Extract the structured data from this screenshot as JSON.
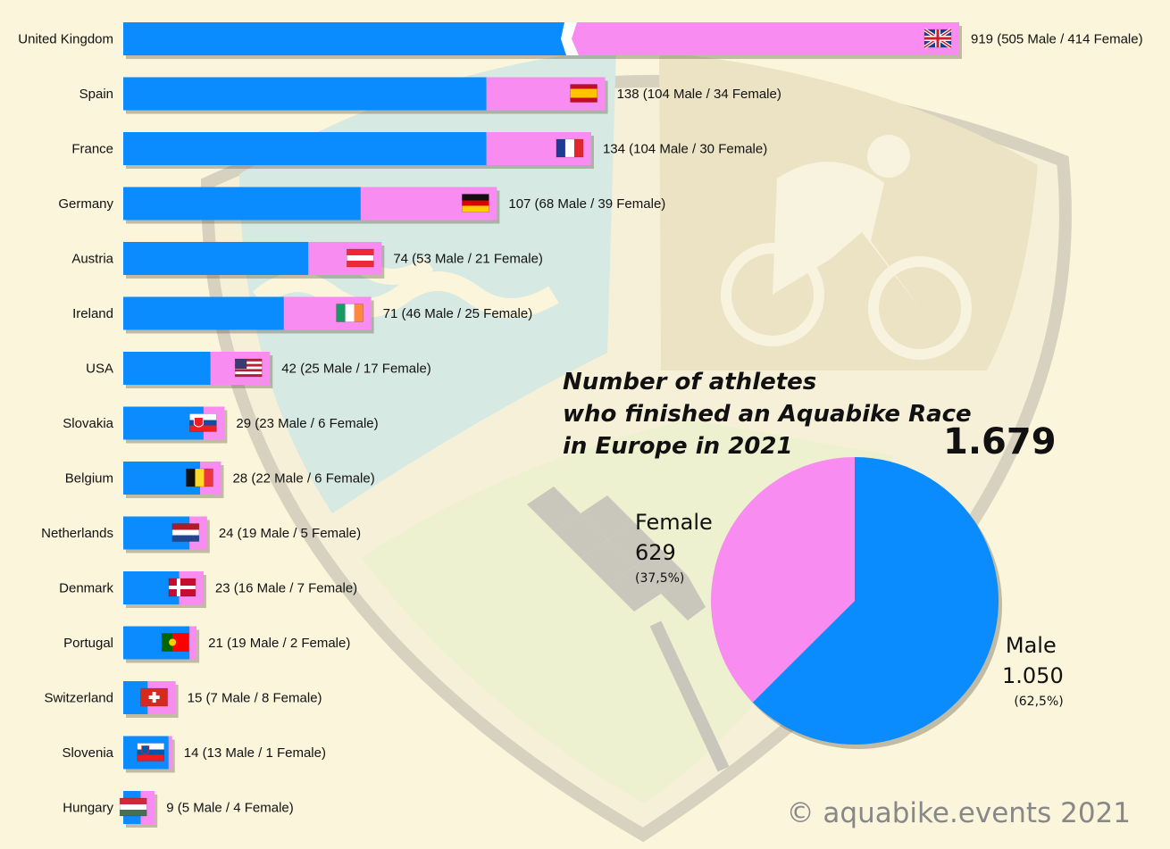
{
  "colors": {
    "male": "#0a8cff",
    "female": "#f88cf0",
    "background": "#fbf5dc"
  },
  "chart_data": [
    {
      "type": "bar",
      "orientation": "horizontal",
      "stacked": true,
      "axis_break_on_first_bar": true,
      "categories": [
        "United Kingdom",
        "Spain",
        "France",
        "Germany",
        "Austria",
        "Ireland",
        "USA",
        "Slovakia",
        "Belgium",
        "Netherlands",
        "Denmark",
        "Portugal",
        "Switzerland",
        "Slovenia",
        "Hungary"
      ],
      "series": [],
      "male": [
        505,
        104,
        104,
        68,
        53,
        46,
        25,
        23,
        22,
        19,
        16,
        19,
        7,
        13,
        5
      ],
      "female": [
        414,
        34,
        30,
        39,
        21,
        25,
        17,
        6,
        6,
        5,
        7,
        2,
        8,
        1,
        4
      ],
      "totals": [
        919,
        138,
        134,
        107,
        74,
        71,
        42,
        29,
        28,
        24,
        23,
        21,
        15,
        14,
        9
      ],
      "value_labels": [
        "919 (505 Male / 414 Female)",
        "138 (104 Male / 34 Female)",
        "134 (104 Male / 30 Female)",
        "107 (68 Male / 39 Female)",
        "74 (53 Male / 21 Female)",
        "71 (46 Male / 25 Female)",
        "42 (25 Male / 17 Female)",
        "29 (23 Male / 6 Female)",
        "28 (22 Male / 6 Female)",
        "24 (19 Male / 5 Female)",
        "23 (16 Male / 7 Female)",
        "21 (19 Male / 2 Female)",
        "15 (7 Male / 8 Female)",
        "14 (13 Male / 1 Female)",
        "9 (5 Male / 4 Female)"
      ],
      "flags": [
        "gb-flag",
        "es-flag",
        "fr-flag",
        "de-flag",
        "at-flag",
        "ie-flag",
        "us-flag",
        "sk-flag",
        "be-flag",
        "nl-flag",
        "dk-flag",
        "pt-flag",
        "ch-flag",
        "si-flag",
        "hu-flag"
      ]
    },
    {
      "type": "pie",
      "title": "Number of athletes\nwho finished an Aquabike Race\nin Europe in 2021",
      "total_label": "1.679",
      "slices": [
        {
          "name": "Male",
          "value": 1050,
          "value_label": "1.050",
          "percent_label": "(62,5%)"
        },
        {
          "name": "Female",
          "value": 629,
          "value_label": "629",
          "percent_label": "(37,5%)"
        }
      ]
    }
  ],
  "title_lines": [
    "Number of athletes",
    "who finished an Aquabike Race",
    "in Europe in 2021"
  ],
  "copyright": "© aquabike.events 2021"
}
